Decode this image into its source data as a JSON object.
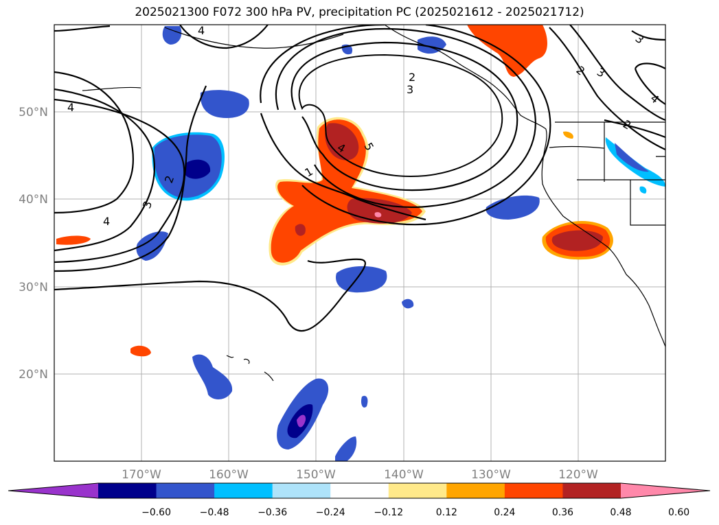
{
  "title": "2025021300 F072 300 hPa PV, precipitation PC (2025021612 - 2025021712)",
  "map": {
    "lat_labels": [
      "50°N",
      "40°N",
      "30°N",
      "20°N"
    ],
    "lon_labels": [
      "170°W",
      "160°W",
      "150°W",
      "140°W",
      "130°W",
      "120°W"
    ],
    "lat_range": [
      10,
      60
    ],
    "lon_range": [
      -180,
      -110
    ],
    "grid": true
  },
  "pv_contour_labels": [
    "1",
    "2",
    "3",
    "4",
    "5",
    "2",
    "3",
    "4",
    "4",
    "3",
    "2",
    "4",
    "3",
    "2",
    "4"
  ],
  "colorbar": {
    "colors": [
      "#9933cc",
      "#00008b",
      "#3355cc",
      "#00bfff",
      "#aee3fa",
      "#ffffff",
      "#ffe98a",
      "#ffa500",
      "#ff4500",
      "#b22222",
      "#ff88aa"
    ],
    "labels": [
      "−0.60",
      "−0.48",
      "−0.36",
      "−0.24",
      "−0.12",
      "0.12",
      "0.24",
      "0.36",
      "0.48",
      "0.60"
    ]
  }
}
